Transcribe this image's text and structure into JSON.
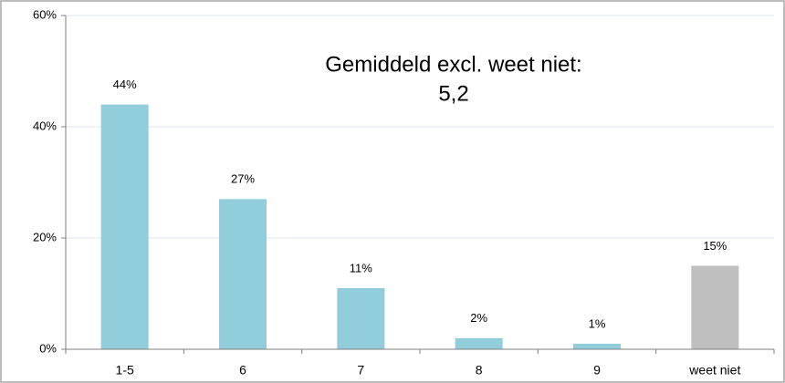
{
  "chart_data": {
    "type": "bar",
    "annotation": [
      "Gemiddeld excl. weet niet:",
      "5,2"
    ],
    "categories": [
      "1-5",
      "6",
      "7",
      "8",
      "9",
      "weet niet"
    ],
    "values": [
      44,
      27,
      11,
      2,
      1,
      15
    ],
    "value_labels": [
      "44%",
      "27%",
      "11%",
      "2%",
      "1%",
      "15%"
    ],
    "colors": [
      "#92cddc",
      "#92cddc",
      "#92cddc",
      "#92cddc",
      "#92cddc",
      "#bfbfbf"
    ],
    "ylim": [
      0,
      60
    ],
    "yticks": [
      {
        "value": 0,
        "label": "0%"
      },
      {
        "value": 20,
        "label": "20%"
      },
      {
        "value": 40,
        "label": "40%"
      },
      {
        "value": 60,
        "label": "60%"
      }
    ],
    "grid": true
  }
}
